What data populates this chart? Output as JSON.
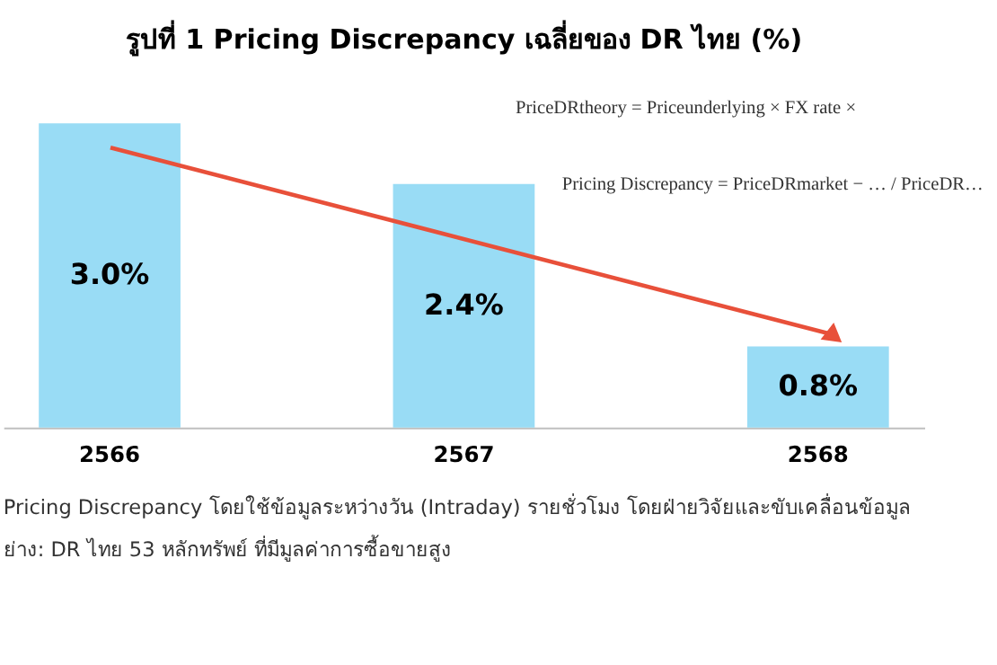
{
  "chart_data": {
    "type": "bar",
    "title": "รูปที่ 1 Pricing Discrepancy เฉลี่ยของ DR ไทย (%)",
    "categories": [
      "2566",
      "2567",
      "2568"
    ],
    "values": [
      3.0,
      2.4,
      0.8
    ],
    "value_labels": [
      "3.0%",
      "2.4%",
      "0.8%"
    ],
    "color": "#99dcf5",
    "annotations": [
      "PriceDRtheory = Priceunderlying × FX rate ×",
      "Pricing Discrepancy  =  PriceDRmarket − … / PriceDR…",
      "Pricing Discrepancy โดยใช้ข้อมูลระหว่างวัน (Intraday) รายชั่วโมง โดยฝ่ายวิจัยและขับเคลื่อนข้อมูล",
      "ย่าง: DR ไทย 53 หลักทรัพย์ ที่มีมูลค่าการซื้อขายสูง"
    ],
    "grid": false
  }
}
